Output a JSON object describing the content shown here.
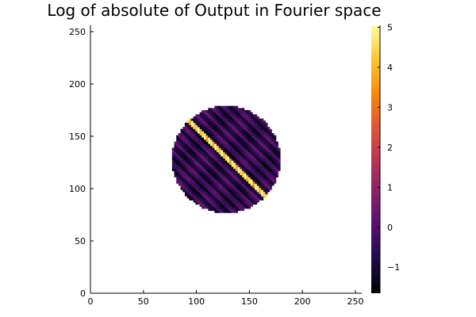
{
  "chart_data": {
    "type": "heatmap",
    "title": "Log of absolute of Output in Fourier space",
    "xlabel": "",
    "ylabel": "",
    "xlim": [
      0,
      256
    ],
    "ylim": [
      0,
      256
    ],
    "x_ticks": [
      0,
      50,
      100,
      150,
      200,
      250
    ],
    "y_ticks": [
      0,
      50,
      100,
      150,
      200,
      250
    ],
    "grid": false,
    "colormap": "inferno",
    "colorbar": {
      "range": [
        -1.65,
        5.05
      ],
      "ticks": [
        -1,
        0,
        1,
        2,
        3,
        4,
        5
      ]
    },
    "data_description": {
      "disk_center": [
        128,
        128
      ],
      "disk_radius": 51,
      "bright_line": {
        "from": [
          93,
          165
        ],
        "to": [
          165,
          93
        ],
        "value": 5.0
      },
      "background_value_range": [
        -1.6,
        0.6
      ],
      "outside_disk": "empty"
    }
  }
}
